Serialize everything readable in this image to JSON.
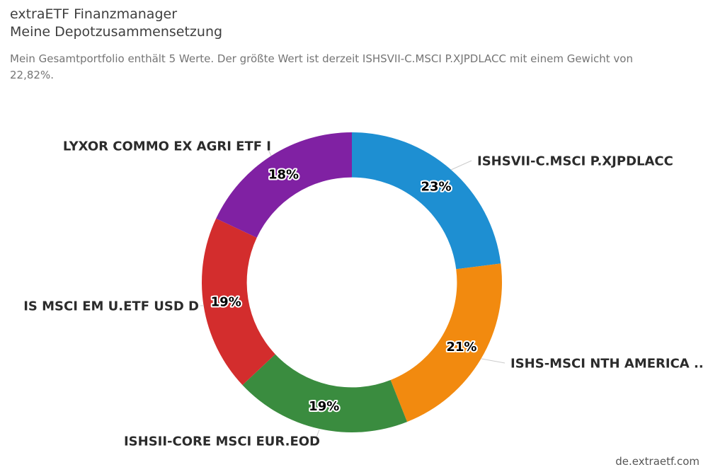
{
  "header": {
    "title_line1": "extraETF Finanzmanager",
    "title_line2": "Meine Depotzusammensetzung",
    "subtitle": "Mein Gesamtportfolio enthält 5 Werte. Der größte Wert ist derzeit ISHSVII-C.MSCI P.XJPDLACC mit einem Gewicht von 22,82%."
  },
  "footer": {
    "watermark": "de.extraetf.com"
  },
  "chart_data": {
    "type": "pie",
    "subtype": "donut",
    "title": "Meine Depotzusammensetzung",
    "total_positions": 5,
    "largest_position": {
      "name": "ISHSVII-C.MSCI P.XJPDLACC",
      "weight_label": "22,82%"
    },
    "legend_position": "none",
    "start_angle_deg": 0,
    "direction": "clockwise",
    "inner_radius_pct": 70,
    "series": [
      {
        "name": "ISHSVII-C.MSCI P.XJPDLACC",
        "value": 23,
        "label": "23%",
        "color": "#1e8fd2"
      },
      {
        "name": "ISHS-MSCI NTH AMERICA ..",
        "value": 21,
        "label": "21%",
        "color": "#f28a0f"
      },
      {
        "name": "ISHSII-CORE MSCI EUR.EOD",
        "value": 19,
        "label": "19%",
        "color": "#3a8c3f"
      },
      {
        "name": "IS MSCI EM U.ETF USD D",
        "value": 19,
        "label": "19%",
        "color": "#d32d2d"
      },
      {
        "name": "LYXOR COMMO EX AGRI ETF I",
        "value": 18,
        "label": "18%",
        "color": "#8021a3"
      }
    ]
  }
}
